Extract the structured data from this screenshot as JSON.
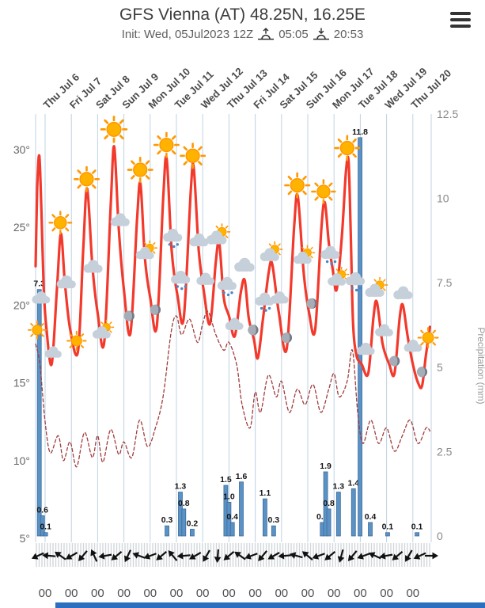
{
  "header": {
    "title": "GFS Vienna (AT) 48.25N, 16.25E",
    "init_label": "Init: Wed, 05Jul2023 12Z",
    "sunrise_time": "05:05",
    "sunset_time": "20:53"
  },
  "chart_data": {
    "type": "line",
    "subtype": "meteogram",
    "title": "GFS Vienna (AT) 48.25N, 16.25E",
    "day_labels": [
      "Thu Jul 6",
      "Fri Jul 7",
      "Sat Jul 8",
      "Sun Jul 9",
      "Mon Jul 10",
      "Tue Jul 11",
      "Wed Jul 12",
      "Thu Jul 13",
      "Fri Jul 14",
      "Sat Jul 15",
      "Sun Jul 16",
      "Mon Jul 17",
      "Tue Jul 18",
      "Wed Jul 19",
      "Thu Jul 20"
    ],
    "hour_labels": [
      "00",
      "00",
      "00",
      "00",
      "00",
      "00",
      "00",
      "00",
      "00",
      "00",
      "00",
      "00",
      "00",
      "00",
      "00"
    ],
    "temp_axis": {
      "tick_labels": [
        "30°",
        "25°",
        "20°",
        "15°",
        "10°",
        "5°"
      ],
      "tick_values": [
        30,
        25,
        20,
        15,
        10,
        5
      ],
      "range": [
        5,
        30
      ]
    },
    "precip_axis": {
      "tick_labels": [
        "12.5",
        "10",
        "7.5",
        "5",
        "2.5",
        "0"
      ],
      "tick_values": [
        12.5,
        10,
        7.5,
        5,
        2.5,
        0
      ],
      "range": [
        0,
        12.5
      ],
      "title": "Precipitation (mm)"
    },
    "series": [
      {
        "name": "temperature",
        "style": "solid",
        "axis": "temp",
        "points": [
          [
            0.64,
            22.5
          ],
          [
            0.7,
            27.5
          ],
          [
            0.78,
            29.6
          ],
          [
            0.86,
            26.0
          ],
          [
            0.95,
            21.0
          ],
          [
            1.05,
            18.5
          ],
          [
            1.25,
            16.2
          ],
          [
            1.45,
            21.0
          ],
          [
            1.6,
            24.6
          ],
          [
            1.75,
            21.5
          ],
          [
            1.95,
            18.5
          ],
          [
            2.25,
            17.0
          ],
          [
            2.45,
            23.5
          ],
          [
            2.6,
            27.5
          ],
          [
            2.8,
            22.5
          ],
          [
            3.0,
            19.5
          ],
          [
            3.25,
            17.6
          ],
          [
            3.5,
            26.5
          ],
          [
            3.63,
            30.2
          ],
          [
            3.8,
            25.0
          ],
          [
            4.0,
            21.0
          ],
          [
            4.25,
            18.2
          ],
          [
            4.5,
            25.5
          ],
          [
            4.63,
            27.8
          ],
          [
            4.8,
            23.0
          ],
          [
            5.0,
            20.5
          ],
          [
            5.25,
            18.6
          ],
          [
            5.5,
            27.0
          ],
          [
            5.63,
            29.4
          ],
          [
            5.82,
            23.5
          ],
          [
            6.05,
            20.5
          ],
          [
            6.28,
            19.2
          ],
          [
            6.55,
            27.5
          ],
          [
            6.66,
            28.8
          ],
          [
            6.85,
            23.5
          ],
          [
            7.05,
            20.8
          ],
          [
            7.28,
            18.8
          ],
          [
            7.5,
            22.8
          ],
          [
            7.63,
            24.0
          ],
          [
            7.8,
            20.5
          ],
          [
            8.0,
            19.3
          ],
          [
            8.22,
            18.0
          ],
          [
            8.45,
            20.8
          ],
          [
            8.6,
            21.6
          ],
          [
            8.75,
            19.2
          ],
          [
            8.95,
            17.8
          ],
          [
            9.1,
            16.6
          ],
          [
            9.3,
            19.2
          ],
          [
            9.52,
            22.2
          ],
          [
            9.65,
            22.6
          ],
          [
            9.9,
            19.5
          ],
          [
            10.2,
            17.2
          ],
          [
            10.48,
            25.0
          ],
          [
            10.62,
            27.0
          ],
          [
            10.85,
            22.0
          ],
          [
            11.05,
            19.5
          ],
          [
            11.28,
            18.4
          ],
          [
            11.52,
            25.0
          ],
          [
            11.65,
            26.6
          ],
          [
            11.8,
            24.0
          ],
          [
            11.95,
            22.3
          ],
          [
            12.1,
            21.0
          ],
          [
            12.3,
            24.5
          ],
          [
            12.45,
            28.5
          ],
          [
            12.55,
            29.3
          ],
          [
            12.63,
            25.0
          ],
          [
            12.72,
            19.0
          ],
          [
            12.85,
            16.8
          ],
          [
            13.05,
            16.2
          ],
          [
            13.3,
            15.6
          ],
          [
            13.5,
            19.2
          ],
          [
            13.63,
            20.2
          ],
          [
            13.85,
            17.5
          ],
          [
            14.1,
            16.2
          ],
          [
            14.3,
            15.6
          ],
          [
            14.5,
            19.2
          ],
          [
            14.62,
            20.0
          ],
          [
            14.8,
            18.0
          ],
          [
            15.0,
            16.2
          ],
          [
            15.2,
            15.0
          ],
          [
            15.35,
            14.8
          ],
          [
            15.5,
            16.8
          ],
          [
            15.65,
            18.6
          ]
        ]
      },
      {
        "name": "dew-point",
        "style": "dashed",
        "axis": "temp",
        "points": [
          [
            0.64,
            17.5
          ],
          [
            0.8,
            16.2
          ],
          [
            1.0,
            12.5
          ],
          [
            1.2,
            10.5
          ],
          [
            1.5,
            11.6
          ],
          [
            1.7,
            10.0
          ],
          [
            1.95,
            11.2
          ],
          [
            2.2,
            9.6
          ],
          [
            2.5,
            11.8
          ],
          [
            2.8,
            10.2
          ],
          [
            3.0,
            11.6
          ],
          [
            3.2,
            9.9
          ],
          [
            3.5,
            12.0
          ],
          [
            3.8,
            10.4
          ],
          [
            4.0,
            11.2
          ],
          [
            4.3,
            10.2
          ],
          [
            4.6,
            12.6
          ],
          [
            4.9,
            10.9
          ],
          [
            5.2,
            12.1
          ],
          [
            5.5,
            14.2
          ],
          [
            5.8,
            18.3
          ],
          [
            6.0,
            19.3
          ],
          [
            6.2,
            18.1
          ],
          [
            6.5,
            19.1
          ],
          [
            6.8,
            17.6
          ],
          [
            7.0,
            18.8
          ],
          [
            7.2,
            19.6
          ],
          [
            7.5,
            18.1
          ],
          [
            7.8,
            17.1
          ],
          [
            8.0,
            17.6
          ],
          [
            8.3,
            16.1
          ],
          [
            8.5,
            13.6
          ],
          [
            8.8,
            12.1
          ],
          [
            9.0,
            14.4
          ],
          [
            9.2,
            13.1
          ],
          [
            9.5,
            15.5
          ],
          [
            9.8,
            14.1
          ],
          [
            10.0,
            15.1
          ],
          [
            10.3,
            13.1
          ],
          [
            10.6,
            14.6
          ],
          [
            10.9,
            13.6
          ],
          [
            11.2,
            14.9
          ],
          [
            11.5,
            13.1
          ],
          [
            11.8,
            14.6
          ],
          [
            12.0,
            15.6
          ],
          [
            12.2,
            14.1
          ],
          [
            12.5,
            15.1
          ],
          [
            12.7,
            17.1
          ],
          [
            12.9,
            13.1
          ],
          [
            13.1,
            11.1
          ],
          [
            13.4,
            12.6
          ],
          [
            13.7,
            11.1
          ],
          [
            14.0,
            12.1
          ],
          [
            14.3,
            10.6
          ],
          [
            14.6,
            11.6
          ],
          [
            14.9,
            12.6
          ],
          [
            15.2,
            11.1
          ],
          [
            15.5,
            12.1
          ],
          [
            15.65,
            11.9
          ]
        ]
      }
    ],
    "precip_bars": [
      {
        "d": 0.78,
        "v": 7.3
      },
      {
        "d": 0.9,
        "v": 0.6
      },
      {
        "d": 1.02,
        "v": 0.1
      },
      {
        "d": 5.64,
        "v": 0.3
      },
      {
        "d": 6.15,
        "v": 1.3
      },
      {
        "d": 6.28,
        "v": 0.8
      },
      {
        "d": 6.6,
        "v": 0.2
      },
      {
        "d": 7.88,
        "v": 1.5
      },
      {
        "d": 8.0,
        "v": 1.0
      },
      {
        "d": 8.13,
        "v": 0.4
      },
      {
        "d": 8.47,
        "v": 1.6
      },
      {
        "d": 9.37,
        "v": 1.1
      },
      {
        "d": 9.7,
        "v": 0.3
      },
      {
        "d": 11.55,
        "v": 0.4
      },
      {
        "d": 11.68,
        "v": 1.9
      },
      {
        "d": 11.8,
        "v": 0.8
      },
      {
        "d": 12.17,
        "v": 1.3
      },
      {
        "d": 12.74,
        "v": 1.4
      },
      {
        "d": 12.99,
        "v": 11.8
      },
      {
        "d": 13.38,
        "v": 0.4
      },
      {
        "d": 14.04,
        "v": 0.1
      },
      {
        "d": 15.16,
        "v": 0.1
      }
    ],
    "weather_icons": [
      {
        "d": 0.7,
        "t": 18.3,
        "type": "sun",
        "s": 0.8
      },
      {
        "d": 0.84,
        "t": 20.3,
        "type": "cloud",
        "s": 0.85
      },
      {
        "d": 1.3,
        "t": 16.8,
        "type": "cloud",
        "s": 0.8
      },
      {
        "d": 1.58,
        "t": 25.2,
        "type": "sun",
        "s": 1.0
      },
      {
        "d": 1.8,
        "t": 21.3,
        "type": "cloud",
        "s": 0.9
      },
      {
        "d": 2.2,
        "t": 17.6,
        "type": "sun",
        "s": 0.85
      },
      {
        "d": 2.58,
        "t": 28.0,
        "type": "sun",
        "s": 1.1
      },
      {
        "d": 2.82,
        "t": 22.3,
        "type": "cloud",
        "s": 0.9
      },
      {
        "d": 3.2,
        "t": 18.2,
        "type": "sun-cloud",
        "s": 0.9
      },
      {
        "d": 3.62,
        "t": 31.2,
        "type": "sun",
        "s": 1.15
      },
      {
        "d": 3.85,
        "t": 25.3,
        "type": "cloud",
        "s": 0.9
      },
      {
        "d": 4.2,
        "t": 19.2,
        "type": "moon",
        "s": 0.85
      },
      {
        "d": 4.62,
        "t": 28.6,
        "type": "sun",
        "s": 1.1
      },
      {
        "d": 4.85,
        "t": 23.3,
        "type": "sun-cloud",
        "s": 0.9
      },
      {
        "d": 5.2,
        "t": 19.6,
        "type": "moon",
        "s": 0.85
      },
      {
        "d": 5.62,
        "t": 30.2,
        "type": "sun",
        "s": 1.1
      },
      {
        "d": 5.85,
        "t": 24.3,
        "type": "rain-cloud",
        "s": 0.9
      },
      {
        "d": 6.15,
        "t": 21.6,
        "type": "rain-cloud",
        "s": 0.9
      },
      {
        "d": 6.62,
        "t": 29.5,
        "type": "sun",
        "s": 1.1
      },
      {
        "d": 6.85,
        "t": 24.0,
        "type": "cloud",
        "s": 0.9
      },
      {
        "d": 7.1,
        "t": 21.5,
        "type": "cloud",
        "s": 0.85
      },
      {
        "d": 7.58,
        "t": 24.3,
        "type": "sun-cloud",
        "s": 1.0
      },
      {
        "d": 7.92,
        "t": 21.2,
        "type": "rain-cloud",
        "s": 0.9
      },
      {
        "d": 8.2,
        "t": 18.6,
        "type": "cloud",
        "s": 0.85
      },
      {
        "d": 8.58,
        "t": 22.4,
        "type": "cloud",
        "s": 0.95
      },
      {
        "d": 8.92,
        "t": 18.3,
        "type": "moon",
        "s": 0.85
      },
      {
        "d": 9.35,
        "t": 20.2,
        "type": "rain-cloud",
        "s": 0.9
      },
      {
        "d": 9.6,
        "t": 23.2,
        "type": "sun-cloud",
        "s": 0.95
      },
      {
        "d": 9.92,
        "t": 20.3,
        "type": "cloud",
        "s": 0.85
      },
      {
        "d": 10.2,
        "t": 17.8,
        "type": "moon",
        "s": 0.85
      },
      {
        "d": 10.6,
        "t": 27.6,
        "type": "sun",
        "s": 1.1
      },
      {
        "d": 10.85,
        "t": 23.0,
        "type": "sun-cloud",
        "s": 0.9
      },
      {
        "d": 11.15,
        "t": 20.0,
        "type": "moon",
        "s": 0.85
      },
      {
        "d": 11.6,
        "t": 27.2,
        "type": "sun",
        "s": 1.05
      },
      {
        "d": 11.85,
        "t": 23.2,
        "type": "rain-cloud",
        "s": 0.9
      },
      {
        "d": 12.15,
        "t": 21.6,
        "type": "sun-cloud",
        "s": 0.9
      },
      {
        "d": 12.5,
        "t": 30.0,
        "type": "sun",
        "s": 1.1
      },
      {
        "d": 12.8,
        "t": 21.5,
        "type": "rain-cloud",
        "s": 0.9
      },
      {
        "d": 13.2,
        "t": 17.0,
        "type": "cloud",
        "s": 0.85
      },
      {
        "d": 13.6,
        "t": 20.9,
        "type": "sun-cloud",
        "s": 0.95
      },
      {
        "d": 13.9,
        "t": 18.2,
        "type": "cloud",
        "s": 0.85
      },
      {
        "d": 14.3,
        "t": 16.3,
        "type": "moon",
        "s": 0.85
      },
      {
        "d": 14.62,
        "t": 20.6,
        "type": "cloud",
        "s": 0.9
      },
      {
        "d": 15.0,
        "t": 17.2,
        "type": "cloud",
        "s": 0.85
      },
      {
        "d": 15.35,
        "t": 15.6,
        "type": "moon",
        "s": 0.85
      },
      {
        "d": 15.58,
        "t": 17.8,
        "type": "sun",
        "s": 0.9
      }
    ],
    "wind_arrows_deg": [
      155,
      185,
      215,
      150,
      130,
      245,
      170,
      140,
      115,
      200,
      160,
      140,
      230,
      175,
      150,
      120,
      95,
      140,
      215,
      160,
      130,
      150,
      175,
      195,
      220,
      160,
      140,
      105,
      130,
      160,
      205,
      170,
      140,
      120,
      155,
      0
    ],
    "colors": {
      "temp_line": "#f2392c",
      "dew_line": "#a03c3c",
      "bar_fill": "#5b92c6",
      "bar_stroke": "#3d6c99",
      "grid": "#bed3e4"
    }
  }
}
